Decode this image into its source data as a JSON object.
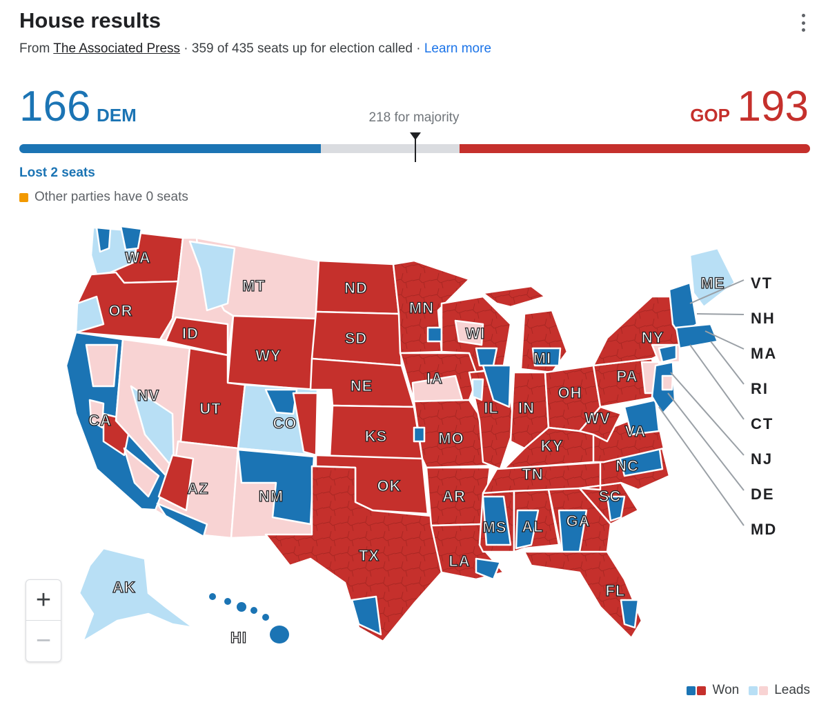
{
  "header": {
    "title": "House results",
    "source_prefix": "From ",
    "source_name": "The Associated Press",
    "called_text": " · 359 of 435 seats up for election called · ",
    "learn_more": "Learn more"
  },
  "tally": {
    "dem_seats": "166",
    "dem_label": "DEM",
    "gop_seats": "193",
    "gop_label": "GOP",
    "majority_text": "218 for majority",
    "total_seats": 435,
    "dem_change": "Lost 2 seats",
    "other_parties": "Other parties have 0 seats"
  },
  "colors": {
    "dem": "#1b74b4",
    "gop": "#c5302c",
    "dem_leads": "#b8dff5",
    "gop_leads": "#f8d3d3",
    "other": "#f29900",
    "undecided": "#dadce0"
  },
  "map": {
    "state_labels": [
      "WA",
      "OR",
      "CA",
      "NV",
      "ID",
      "MT",
      "WY",
      "UT",
      "CO",
      "AZ",
      "NM",
      "ND",
      "SD",
      "NE",
      "KS",
      "OK",
      "TX",
      "MN",
      "IA",
      "MO",
      "AR",
      "LA",
      "WI",
      "IL",
      "MS",
      "AL",
      "MI",
      "IN",
      "TN",
      "KY",
      "OH",
      "GA",
      "FL",
      "SC",
      "NC",
      "VA",
      "WV",
      "PA",
      "NY",
      "ME",
      "AK",
      "HI"
    ],
    "callout_labels": [
      "VT",
      "NH",
      "MA",
      "RI",
      "CT",
      "NJ",
      "DE",
      "MD"
    ]
  },
  "zoom": {
    "in": "+",
    "out": "−"
  },
  "legend": {
    "won": "Won",
    "leads": "Leads"
  }
}
